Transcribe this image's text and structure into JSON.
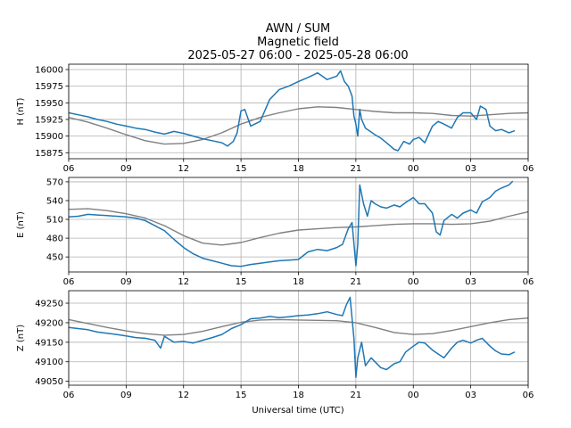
{
  "title": {
    "line1": "AWN / SUM",
    "line2": "Magnetic field",
    "line3": "2025-05-27 06:00 - 2025-05-28 06:00"
  },
  "xlabel": "Universal time (UTC)",
  "colors": {
    "measured": "#1f77b4",
    "baseline": "#808080",
    "grid": "#b0b0b0"
  },
  "chart_data": [
    {
      "type": "line",
      "panel": "H",
      "ylabel": "H (nT)",
      "x_ticks": [
        "06",
        "09",
        "12",
        "15",
        "18",
        "21",
        "00",
        "03",
        "06"
      ],
      "x_range_hours": [
        6,
        30
      ],
      "ylim": [
        15866,
        16008
      ],
      "y_ticks": [
        15875,
        15900,
        15925,
        15950,
        15975,
        16000
      ],
      "grid": true,
      "series": [
        {
          "role": "measured",
          "x": [
            6,
            6.5,
            7,
            7.5,
            8,
            8.5,
            9,
            9.5,
            10,
            10.5,
            11,
            11.5,
            12,
            12.5,
            13,
            13.5,
            14,
            14.3,
            14.6,
            14.8,
            15.0,
            15.2,
            15.5,
            16,
            16.5,
            17,
            17.5,
            18,
            18.5,
            19,
            19.5,
            20,
            20.2,
            20.4,
            20.6,
            20.8,
            20.9,
            21.0,
            21.1,
            21.2,
            21.3,
            21.5,
            21.7,
            22,
            22.3,
            22.6,
            23,
            23.2,
            23.5,
            23.8,
            24,
            24.3,
            24.6,
            25,
            25.3,
            25.6,
            26,
            26.3,
            26.6,
            27,
            27.3,
            27.5,
            27.8,
            28,
            28.3,
            28.6,
            29,
            29.3
          ],
          "y": [
            15935,
            15932,
            15929,
            15925,
            15922,
            15918,
            15915,
            15912,
            15910,
            15906,
            15903,
            15907,
            15904,
            15900,
            15896,
            15893,
            15890,
            15885,
            15892,
            15905,
            15938,
            15940,
            15915,
            15922,
            15955,
            15970,
            15975,
            15982,
            15988,
            15995,
            15985,
            15990,
            15998,
            15982,
            15975,
            15960,
            15930,
            15918,
            15900,
            15940,
            15925,
            15912,
            15908,
            15902,
            15897,
            15890,
            15880,
            15878,
            15892,
            15888,
            15895,
            15898,
            15890,
            15915,
            15922,
            15918,
            15912,
            15928,
            15935,
            15935,
            15925,
            15945,
            15940,
            15915,
            15908,
            15910,
            15905,
            15908
          ]
        },
        {
          "role": "baseline",
          "x": [
            6,
            7,
            8,
            9,
            10,
            11,
            12,
            13,
            14,
            15,
            16,
            17,
            18,
            19,
            20,
            21,
            22,
            23,
            24,
            25,
            26,
            27,
            28,
            29,
            30
          ],
          "y": [
            15928,
            15921,
            15912,
            15902,
            15893,
            15888,
            15889,
            15895,
            15905,
            15918,
            15928,
            15935,
            15941,
            15944,
            15943,
            15940,
            15937,
            15935,
            15935,
            15934,
            15931,
            15930,
            15932,
            15934,
            15935
          ]
        }
      ]
    },
    {
      "type": "line",
      "panel": "E",
      "ylabel": "E (nT)",
      "x_ticks": [
        "06",
        "09",
        "12",
        "15",
        "18",
        "21",
        "00",
        "03",
        "06"
      ],
      "x_range_hours": [
        6,
        30
      ],
      "ylim": [
        426,
        577
      ],
      "y_ticks": [
        450,
        480,
        510,
        540,
        570
      ],
      "grid": true,
      "series": [
        {
          "role": "measured",
          "x": [
            6,
            6.5,
            7,
            7.5,
            8,
            8.5,
            9,
            9.5,
            10,
            10.5,
            11,
            11.5,
            12,
            12.5,
            13,
            13.5,
            14,
            14.5,
            15,
            15.5,
            16,
            16.5,
            17,
            17.5,
            18,
            18.5,
            19,
            19.5,
            20,
            20.3,
            20.6,
            20.8,
            21.0,
            21.1,
            21.2,
            21.4,
            21.6,
            21.8,
            22,
            22.3,
            22.6,
            23,
            23.3,
            23.6,
            24,
            24.3,
            24.6,
            25,
            25.2,
            25.4,
            25.6,
            26,
            26.3,
            26.6,
            27,
            27.3,
            27.6,
            28,
            28.3,
            28.6,
            29,
            29.2
          ],
          "y": [
            514,
            515,
            518,
            517,
            516,
            515,
            514,
            512,
            508,
            500,
            492,
            478,
            465,
            455,
            448,
            444,
            440,
            436,
            435,
            438,
            440,
            442,
            444,
            445,
            446,
            458,
            462,
            460,
            465,
            470,
            495,
            505,
            436,
            470,
            565,
            535,
            515,
            540,
            535,
            530,
            528,
            533,
            530,
            537,
            545,
            535,
            535,
            520,
            490,
            485,
            508,
            518,
            512,
            520,
            525,
            520,
            538,
            545,
            555,
            560,
            565,
            571
          ]
        },
        {
          "role": "baseline",
          "x": [
            6,
            7,
            8,
            9,
            10,
            11,
            12,
            13,
            14,
            15,
            16,
            17,
            18,
            19,
            20,
            21,
            22,
            23,
            24,
            25,
            26,
            27,
            28,
            29,
            30
          ],
          "y": [
            526,
            527,
            524,
            519,
            512,
            500,
            484,
            472,
            469,
            473,
            481,
            488,
            493,
            495,
            497,
            498,
            500,
            502,
            503,
            503,
            502,
            503,
            507,
            515,
            522
          ]
        }
      ]
    },
    {
      "type": "line",
      "panel": "Z",
      "ylabel": "Z (nT)",
      "x_ticks": [
        "06",
        "09",
        "12",
        "15",
        "18",
        "21",
        "00",
        "03",
        "06"
      ],
      "x_range_hours": [
        6,
        30
      ],
      "ylim": [
        49040,
        49282
      ],
      "y_ticks": [
        49050,
        49100,
        49150,
        49200,
        49250
      ],
      "grid": true,
      "series": [
        {
          "role": "measured",
          "x": [
            6,
            6.5,
            7,
            7.5,
            8,
            8.5,
            9,
            9.5,
            10,
            10.5,
            10.8,
            11,
            11.5,
            12,
            12.5,
            13,
            13.5,
            14,
            14.5,
            15,
            15.5,
            16,
            16.5,
            17,
            17.5,
            18,
            18.5,
            19,
            19.5,
            20,
            20.3,
            20.5,
            20.7,
            20.9,
            21.0,
            21.1,
            21.3,
            21.5,
            21.8,
            22,
            22.3,
            22.6,
            23,
            23.3,
            23.6,
            24,
            24.3,
            24.6,
            25,
            25.3,
            25.6,
            26,
            26.3,
            26.6,
            27,
            27.3,
            27.6,
            28,
            28.3,
            28.6,
            29,
            29.3
          ],
          "y": [
            49188,
            49185,
            49182,
            49176,
            49173,
            49170,
            49166,
            49162,
            49160,
            49155,
            49135,
            49165,
            49150,
            49152,
            49148,
            49155,
            49162,
            49170,
            49185,
            49195,
            49210,
            49212,
            49216,
            49213,
            49215,
            49218,
            49220,
            49223,
            49228,
            49221,
            49218,
            49245,
            49265,
            49160,
            49060,
            49110,
            49150,
            49090,
            49110,
            49100,
            49085,
            49080,
            49095,
            49100,
            49125,
            49140,
            49150,
            49148,
            49130,
            49120,
            49110,
            49135,
            49150,
            49155,
            49148,
            49155,
            49160,
            49140,
            49128,
            49120,
            49118,
            49125
          ]
        },
        {
          "role": "baseline",
          "x": [
            6,
            7,
            8,
            9,
            10,
            11,
            12,
            13,
            14,
            15,
            16,
            17,
            18,
            19,
            20,
            21,
            22,
            23,
            24,
            25,
            26,
            27,
            28,
            29,
            30
          ],
          "y": [
            49208,
            49198,
            49188,
            49179,
            49172,
            49168,
            49170,
            49178,
            49190,
            49201,
            49207,
            49208,
            49207,
            49206,
            49205,
            49200,
            49188,
            49175,
            49170,
            49172,
            49180,
            49190,
            49200,
            49208,
            49212
          ]
        }
      ]
    }
  ]
}
